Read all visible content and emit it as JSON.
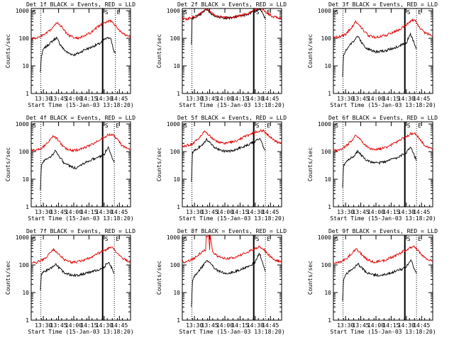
{
  "figure": {
    "common_xlabel": "Start Time (15-Jan-03 13:18:20)",
    "ylabel": "Counts/sec",
    "legend_text": "BLACK = Events, RED = LLD",
    "colors": {
      "events": "#000000",
      "lld": "#e00000",
      "axis": "#000000"
    },
    "x_ticks": [
      {
        "t": 12,
        "label": "13:30"
      },
      {
        "t": 27,
        "label": "13:45"
      },
      {
        "t": 42,
        "label": "14:00"
      },
      {
        "t": 57,
        "label": "14:15"
      },
      {
        "t": 72,
        "label": "14:30"
      },
      {
        "t": 87,
        "label": "14:45"
      }
    ],
    "y_ticks": [
      {
        "v": 1,
        "label": "1"
      },
      {
        "v": 10,
        "label": "10"
      },
      {
        "v": 100,
        "label": "100"
      },
      {
        "v": 1000,
        "label": "1000"
      }
    ],
    "marker_labels": {
      "start": "S",
      "end": "E"
    }
  },
  "chart_data": [
    {
      "type": "line",
      "title": "Det 1f BLACK = Events, RED = LLD",
      "xlabel": "Start Time (15-Jan-03 13:18:20)",
      "ylabel": "Counts/sec",
      "xlim": [
        0,
        98
      ],
      "ylim": [
        1,
        1200
      ],
      "yscale": "log",
      "dotted_lines": [
        9.5,
        83
      ],
      "solid_line": 70.5,
      "series": [
        {
          "name": "Events",
          "color": "#000000",
          "x": [
            9,
            10,
            12,
            16,
            20,
            25,
            28,
            32,
            36,
            42,
            48,
            52,
            58,
            63,
            68,
            72,
            75,
            78,
            80,
            82,
            83
          ],
          "values": [
            6,
            22,
            40,
            55,
            75,
            105,
            65,
            40,
            30,
            25,
            30,
            38,
            45,
            55,
            65,
            90,
            100,
            110,
            60,
            30,
            30
          ]
        },
        {
          "name": "LLD",
          "color": "#e00000",
          "x": [
            0,
            4,
            8,
            12,
            17,
            22,
            26,
            30,
            34,
            38,
            44,
            50,
            55,
            60,
            66,
            72,
            77,
            80,
            84,
            90,
            98
          ],
          "values": [
            100,
            100,
            110,
            130,
            170,
            260,
            380,
            260,
            170,
            120,
            100,
            110,
            135,
            170,
            260,
            380,
            420,
            400,
            260,
            150,
            115
          ]
        }
      ]
    },
    {
      "type": "line",
      "title": "Det 2f BLACK = Events, RED = LLD",
      "xlabel": "Start Time (15-Jan-03 13:18:20)",
      "ylabel": "Counts/sec",
      "xlim": [
        0,
        98
      ],
      "ylim": [
        1,
        1200
      ],
      "yscale": "log",
      "dotted_lines": [
        9.5,
        82
      ],
      "solid_line": 70.5,
      "series": [
        {
          "name": "Events",
          "color": "#000000",
          "x": [
            9,
            9.6,
            12,
            16,
            20,
            24,
            28,
            32,
            38,
            44,
            50,
            56,
            62,
            68,
            72,
            76,
            78,
            80,
            82
          ],
          "values": [
            60,
            500,
            580,
            650,
            850,
            1150,
            800,
            650,
            560,
            540,
            560,
            620,
            700,
            850,
            1000,
            1200,
            1000,
            700,
            500
          ]
        },
        {
          "name": "LLD",
          "color": "#e00000",
          "x": [
            0,
            4,
            8,
            12,
            16,
            20,
            24,
            28,
            32,
            38,
            44,
            50,
            56,
            62,
            68,
            72,
            76,
            80,
            84,
            90,
            98
          ],
          "values": [
            500,
            500,
            540,
            600,
            700,
            900,
            1200,
            850,
            680,
            580,
            560,
            580,
            640,
            750,
            900,
            1100,
            1300,
            1100,
            800,
            600,
            520
          ]
        }
      ]
    },
    {
      "type": "line",
      "title": "Det 3f BLACK = Events, RED = LLD",
      "xlabel": "Start Time (15-Jan-03 13:18:20)",
      "ylabel": "Counts/sec",
      "xlim": [
        0,
        98
      ],
      "ylim": [
        1,
        1200
      ],
      "yscale": "log",
      "dotted_lines": [
        9.5,
        82
      ],
      "solid_line": 70.5,
      "series": [
        {
          "name": "Events",
          "color": "#000000",
          "x": [
            9,
            10,
            12,
            16,
            20,
            24,
            28,
            32,
            38,
            44,
            50,
            56,
            62,
            66,
            72,
            76,
            78,
            80,
            82
          ],
          "values": [
            4,
            25,
            35,
            55,
            80,
            120,
            70,
            45,
            35,
            32,
            35,
            40,
            48,
            55,
            70,
            140,
            100,
            60,
            40
          ]
        },
        {
          "name": "LLD",
          "color": "#e00000",
          "x": [
            0,
            4,
            8,
            12,
            17,
            22,
            26,
            30,
            34,
            40,
            46,
            52,
            58,
            64,
            70,
            76,
            80,
            84,
            90,
            98
          ],
          "values": [
            110,
            110,
            120,
            140,
            220,
            400,
            290,
            190,
            130,
            110,
            115,
            130,
            160,
            200,
            280,
            400,
            480,
            280,
            160,
            120
          ]
        }
      ]
    },
    {
      "type": "line",
      "title": "Det 4f BLACK = Events, RED = LLD",
      "xlabel": "Start Time (15-Jan-03 13:18:20)",
      "ylabel": "Counts/sec",
      "xlim": [
        0,
        98
      ],
      "ylim": [
        1,
        1200
      ],
      "yscale": "log",
      "dotted_lines": [
        9.5,
        82
      ],
      "solid_line": 70.5,
      "series": [
        {
          "name": "Events",
          "color": "#000000",
          "x": [
            9,
            10,
            12,
            16,
            20,
            24,
            28,
            32,
            38,
            44,
            50,
            56,
            62,
            68,
            72,
            76,
            78,
            80,
            82
          ],
          "values": [
            4,
            30,
            45,
            55,
            70,
            110,
            65,
            40,
            30,
            25,
            35,
            45,
            55,
            65,
            80,
            150,
            90,
            60,
            40
          ]
        },
        {
          "name": "LLD",
          "color": "#e00000",
          "x": [
            0,
            4,
            8,
            12,
            17,
            22,
            26,
            30,
            34,
            40,
            46,
            52,
            58,
            64,
            70,
            76,
            80,
            84,
            90,
            98
          ],
          "values": [
            110,
            110,
            125,
            150,
            220,
            380,
            280,
            180,
            130,
            110,
            115,
            135,
            170,
            220,
            300,
            400,
            430,
            300,
            160,
            120
          ]
        }
      ]
    },
    {
      "type": "line",
      "title": "Det 5f BLACK = Events, RED = LLD",
      "xlabel": "Start Time (15-Jan-03 13:18:20)",
      "ylabel": "Counts/sec",
      "xlim": [
        0,
        98
      ],
      "ylim": [
        1,
        1200
      ],
      "yscale": "log",
      "dotted_lines": [
        9.5,
        82
      ],
      "solid_line": 70.5,
      "series": [
        {
          "name": "Events",
          "color": "#000000",
          "x": [
            9,
            10,
            12,
            16,
            20,
            24,
            28,
            32,
            38,
            44,
            50,
            56,
            62,
            68,
            72,
            76,
            78,
            80,
            82
          ],
          "values": [
            8,
            90,
            110,
            140,
            180,
            280,
            200,
            140,
            110,
            100,
            110,
            130,
            160,
            200,
            240,
            300,
            220,
            150,
            110
          ]
        },
        {
          "name": "LLD",
          "color": "#e00000",
          "x": [
            0,
            4,
            8,
            12,
            17,
            22,
            26,
            30,
            34,
            40,
            46,
            52,
            58,
            64,
            70,
            76,
            80,
            84,
            90,
            98
          ],
          "values": [
            160,
            165,
            180,
            220,
            320,
            550,
            420,
            300,
            230,
            200,
            210,
            240,
            300,
            380,
            480,
            560,
            580,
            420,
            260,
            190
          ]
        }
      ]
    },
    {
      "type": "line",
      "title": "Det 6f BLACK = Events, RED = LLD",
      "xlabel": "Start Time (15-Jan-03 13:18:20)",
      "ylabel": "Counts/sec",
      "xlim": [
        0,
        98
      ],
      "ylim": [
        1,
        1200
      ],
      "yscale": "log",
      "dotted_lines": [
        9.5,
        82
      ],
      "solid_line": 70.5,
      "series": [
        {
          "name": "Events",
          "color": "#000000",
          "x": [
            9,
            10,
            12,
            16,
            20,
            24,
            28,
            32,
            38,
            44,
            50,
            56,
            62,
            68,
            72,
            76,
            78,
            80,
            82
          ],
          "values": [
            5,
            30,
            40,
            55,
            70,
            100,
            70,
            50,
            40,
            38,
            42,
            50,
            60,
            75,
            90,
            150,
            110,
            70,
            50
          ]
        },
        {
          "name": "LLD",
          "color": "#e00000",
          "x": [
            0,
            4,
            8,
            12,
            17,
            22,
            26,
            30,
            34,
            40,
            46,
            52,
            58,
            64,
            70,
            76,
            80,
            84,
            90,
            98
          ],
          "values": [
            110,
            110,
            125,
            150,
            230,
            380,
            290,
            190,
            140,
            120,
            125,
            145,
            180,
            240,
            320,
            430,
            480,
            320,
            170,
            125
          ]
        }
      ]
    },
    {
      "type": "line",
      "title": "Det 7f BLACK = Events, RED = LLD",
      "xlabel": "Start Time (15-Jan-03 13:18:20)",
      "ylabel": "Counts/sec",
      "xlim": [
        0,
        98
      ],
      "ylim": [
        1,
        1200
      ],
      "yscale": "log",
      "dotted_lines": [
        9.5,
        82
      ],
      "solid_line": 70.5,
      "series": [
        {
          "name": "Events",
          "color": "#000000",
          "x": [
            9,
            10,
            12,
            16,
            20,
            24,
            28,
            32,
            38,
            44,
            50,
            56,
            62,
            68,
            72,
            76,
            78,
            80,
            82
          ],
          "values": [
            12,
            45,
            55,
            65,
            80,
            110,
            75,
            55,
            45,
            42,
            45,
            52,
            60,
            70,
            85,
            130,
            100,
            70,
            50
          ]
        },
        {
          "name": "LLD",
          "color": "#e00000",
          "x": [
            0,
            4,
            8,
            12,
            17,
            22,
            26,
            30,
            34,
            40,
            46,
            52,
            58,
            64,
            70,
            76,
            80,
            84,
            90,
            98
          ],
          "values": [
            120,
            120,
            135,
            160,
            230,
            370,
            280,
            190,
            145,
            125,
            130,
            150,
            185,
            240,
            310,
            400,
            420,
            300,
            170,
            130
          ]
        }
      ]
    },
    {
      "type": "line",
      "title": "Det 8f BLACK = Events, RED = LLD",
      "xlabel": "Start Time (15-Jan-03 13:18:20)",
      "ylabel": "Counts/sec",
      "xlim": [
        0,
        98
      ],
      "ylim": [
        1,
        1200
      ],
      "yscale": "log",
      "dotted_lines": [
        9.5,
        82
      ],
      "solid_line": 70.5,
      "series": [
        {
          "name": "Events",
          "color": "#000000",
          "x": [
            9,
            10,
            12,
            16,
            20,
            24,
            28,
            32,
            38,
            44,
            50,
            56,
            62,
            68,
            72,
            76,
            78,
            80,
            82
          ],
          "values": [
            3,
            25,
            40,
            60,
            90,
            150,
            110,
            75,
            55,
            50,
            55,
            65,
            80,
            100,
            130,
            280,
            170,
            90,
            60
          ]
        },
        {
          "name": "LLD",
          "color": "#e00000",
          "x": [
            0,
            4,
            8,
            12,
            17,
            22,
            23,
            23.5,
            26,
            27,
            27.5,
            30,
            34,
            40,
            46,
            52,
            58,
            64,
            70,
            76,
            80,
            84,
            90,
            98
          ],
          "values": [
            130,
            130,
            150,
            180,
            250,
            330,
            330,
            1150,
            1150,
            350,
            1150,
            300,
            220,
            170,
            170,
            190,
            230,
            290,
            360,
            460,
            380,
            250,
            160,
            130
          ]
        }
      ]
    },
    {
      "type": "line",
      "title": "Det 9f BLACK = Events, RED = LLD",
      "xlabel": "Start Time (15-Jan-03 13:18:20)",
      "ylabel": "Counts/sec",
      "xlim": [
        0,
        98
      ],
      "ylim": [
        1,
        1200
      ],
      "yscale": "log",
      "dotted_lines": [
        9.5,
        82
      ],
      "solid_line": 70.5,
      "series": [
        {
          "name": "Events",
          "color": "#000000",
          "x": [
            9,
            10,
            12,
            16,
            20,
            24,
            28,
            32,
            38,
            44,
            50,
            56,
            62,
            68,
            72,
            76,
            78,
            80,
            82
          ],
          "values": [
            5,
            30,
            45,
            60,
            75,
            110,
            80,
            55,
            45,
            42,
            45,
            52,
            60,
            72,
            90,
            150,
            110,
            70,
            50
          ]
        },
        {
          "name": "LLD",
          "color": "#e00000",
          "x": [
            0,
            4,
            8,
            12,
            17,
            22,
            26,
            30,
            34,
            40,
            46,
            52,
            58,
            64,
            70,
            76,
            80,
            84,
            90,
            98
          ],
          "values": [
            120,
            120,
            135,
            160,
            240,
            380,
            290,
            200,
            150,
            130,
            135,
            155,
            190,
            250,
            330,
            420,
            450,
            320,
            180,
            135
          ]
        }
      ]
    }
  ]
}
